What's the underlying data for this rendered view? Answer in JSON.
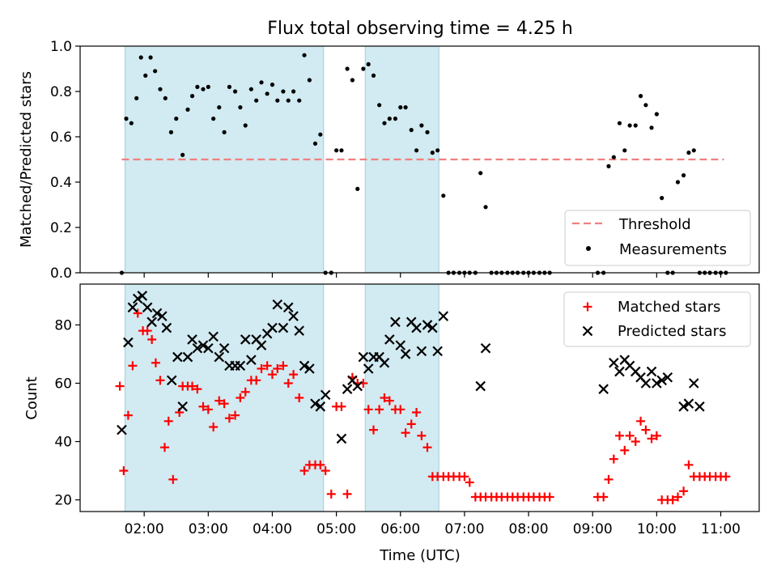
{
  "chart_data": [
    {
      "type": "scatter",
      "title": "Flux total observing time = 4.25 h",
      "ylabel": "Matched/Predicted stars",
      "xlabel": "",
      "x_unit": "hours UTC",
      "ylim": [
        0,
        1
      ],
      "yticks": [
        "0.0",
        "0.2",
        "0.4",
        "0.6",
        "0.8",
        "1.0"
      ],
      "shaded_intervals": [
        [
          1.7,
          4.8
        ],
        [
          5.45,
          6.6
        ]
      ],
      "shade_color": "#add8e6",
      "legend_position": "lower right",
      "threshold": {
        "name": "Threshold",
        "value": 0.5,
        "x_range": [
          1.65,
          11.05
        ],
        "color": "#f08080"
      },
      "series": [
        {
          "name": "Measurements",
          "color": "#000000",
          "x": [
            1.65,
            1.72,
            1.8,
            1.88,
            1.95,
            2.02,
            2.1,
            2.17,
            2.25,
            2.33,
            2.42,
            2.5,
            2.6,
            2.68,
            2.75,
            2.83,
            2.92,
            3.0,
            3.08,
            3.17,
            3.25,
            3.33,
            3.42,
            3.5,
            3.58,
            3.67,
            3.75,
            3.83,
            3.92,
            4.0,
            4.08,
            4.17,
            4.25,
            4.33,
            4.42,
            4.5,
            4.58,
            4.67,
            4.75,
            4.83,
            4.92,
            5.0,
            5.08,
            5.17,
            5.25,
            5.33,
            5.42,
            5.5,
            5.58,
            5.67,
            5.75,
            5.83,
            5.92,
            6.0,
            6.08,
            6.17,
            6.25,
            6.33,
            6.42,
            6.5,
            6.58,
            6.67,
            6.75,
            6.83,
            6.92,
            7.0,
            7.08,
            7.17,
            7.25,
            7.33,
            7.42,
            7.5,
            7.58,
            7.67,
            7.75,
            7.83,
            7.92,
            8.0,
            8.08,
            8.17,
            8.25,
            8.33,
            9.08,
            9.17,
            9.25,
            9.33,
            9.42,
            9.5,
            9.58,
            9.67,
            9.75,
            9.83,
            9.92,
            10.0,
            10.08,
            10.17,
            10.25,
            10.33,
            10.42,
            10.5,
            10.58,
            10.67,
            10.75,
            10.83,
            10.92,
            11.0,
            11.08
          ],
          "y": [
            0.0,
            0.68,
            0.66,
            0.77,
            0.95,
            0.87,
            0.95,
            0.89,
            0.81,
            0.77,
            0.62,
            0.68,
            0.52,
            0.72,
            0.78,
            0.82,
            0.81,
            0.82,
            0.68,
            0.73,
            0.62,
            0.82,
            0.8,
            0.73,
            0.65,
            0.81,
            0.76,
            0.84,
            0.79,
            0.83,
            0.76,
            0.8,
            0.76,
            0.8,
            0.76,
            0.96,
            0.85,
            0.57,
            0.61,
            0.0,
            0.0,
            0.54,
            0.54,
            0.9,
            0.85,
            0.37,
            0.9,
            0.92,
            0.87,
            0.74,
            0.66,
            0.68,
            0.68,
            0.73,
            0.73,
            0.63,
            0.54,
            0.65,
            0.62,
            0.53,
            0.54,
            0.34,
            0.0,
            0.0,
            0.0,
            0.0,
            0.0,
            0.0,
            0.44,
            0.29,
            0.0,
            0.0,
            0.0,
            0.0,
            0.0,
            0.0,
            0.0,
            0.0,
            0.0,
            0.0,
            0.0,
            0.0,
            0.0,
            0.0,
            0.47,
            0.51,
            0.66,
            0.54,
            0.65,
            0.65,
            0.78,
            0.74,
            0.64,
            0.7,
            0.33,
            0.0,
            0.0,
            0.4,
            0.43,
            0.53,
            0.54,
            0.0,
            0.0,
            0.0,
            0.0,
            0.0,
            0.0
          ]
        }
      ]
    },
    {
      "type": "scatter",
      "title": "",
      "ylabel": "Count",
      "xlabel": "Time (UTC)",
      "x_unit": "hours UTC",
      "xlim": [
        1.0,
        11.6
      ],
      "xticks": [
        "02:00",
        "03:00",
        "04:00",
        "05:00",
        "06:00",
        "07:00",
        "08:00",
        "09:00",
        "10:00",
        "11:00"
      ],
      "ylim": [
        16,
        94
      ],
      "yticks": [
        "20",
        "40",
        "60",
        "80"
      ],
      "shaded_intervals": [
        [
          1.7,
          4.8
        ],
        [
          5.45,
          6.6
        ]
      ],
      "shade_color": "#add8e6",
      "legend_position": "upper right",
      "series": [
        {
          "name": "Matched stars",
          "marker": "plus",
          "color": "#ff0000",
          "x": [
            1.62,
            1.68,
            1.75,
            1.82,
            1.9,
            1.98,
            2.05,
            2.12,
            2.18,
            2.25,
            2.32,
            2.38,
            2.45,
            2.55,
            2.6,
            2.68,
            2.75,
            2.83,
            2.92,
            3.0,
            3.08,
            3.17,
            3.25,
            3.33,
            3.42,
            3.5,
            3.58,
            3.67,
            3.75,
            3.83,
            3.92,
            4.0,
            4.08,
            4.17,
            4.25,
            4.33,
            4.42,
            4.5,
            4.58,
            4.67,
            4.75,
            4.83,
            4.92,
            5.0,
            5.08,
            5.17,
            5.25,
            5.33,
            5.42,
            5.5,
            5.58,
            5.67,
            5.75,
            5.83,
            5.92,
            6.0,
            6.08,
            6.17,
            6.25,
            6.33,
            6.42,
            6.5,
            6.58,
            6.67,
            6.75,
            6.83,
            6.92,
            7.0,
            7.08,
            7.17,
            7.25,
            7.33,
            7.42,
            7.5,
            7.58,
            7.67,
            7.75,
            7.83,
            7.92,
            8.0,
            8.08,
            8.17,
            8.25,
            8.33,
            9.08,
            9.17,
            9.25,
            9.33,
            9.42,
            9.5,
            9.58,
            9.67,
            9.75,
            9.83,
            9.92,
            10.0,
            10.08,
            10.17,
            10.25,
            10.33,
            10.42,
            10.5,
            10.58,
            10.67,
            10.75,
            10.83,
            10.92,
            11.0,
            11.08
          ],
          "y": [
            59,
            30,
            49,
            66,
            84,
            78,
            78,
            75,
            67,
            61,
            38,
            47,
            27,
            50,
            59,
            59,
            59,
            58,
            52,
            51,
            45,
            54,
            53,
            48,
            49,
            55,
            57,
            61,
            61,
            65,
            66,
            63,
            65,
            66,
            60,
            63,
            55,
            30,
            32,
            32,
            32,
            30,
            22,
            52,
            52,
            22,
            62,
            60,
            60,
            51,
            44,
            51,
            55,
            54,
            51,
            51,
            43,
            46,
            50,
            42,
            38,
            28,
            28,
            28,
            28,
            28,
            28,
            28,
            26,
            21,
            21,
            21,
            21,
            21,
            21,
            21,
            21,
            21,
            21,
            21,
            21,
            21,
            21,
            21,
            21,
            21,
            27,
            34,
            42,
            37,
            42,
            40,
            47,
            44,
            41,
            42,
            20,
            20,
            20,
            21,
            23,
            32,
            28,
            28,
            28,
            28,
            28,
            28,
            28
          ]
        },
        {
          "name": "Predicted stars",
          "marker": "x",
          "color": "#000000",
          "x": [
            1.65,
            1.75,
            1.82,
            1.9,
            1.97,
            2.05,
            2.12,
            2.2,
            2.28,
            2.35,
            2.43,
            2.52,
            2.6,
            2.68,
            2.75,
            2.83,
            2.92,
            3.0,
            3.08,
            3.17,
            3.25,
            3.33,
            3.42,
            3.5,
            3.58,
            3.67,
            3.75,
            3.83,
            3.92,
            4.0,
            4.08,
            4.17,
            4.25,
            4.33,
            4.42,
            4.5,
            4.58,
            4.67,
            4.75,
            4.83,
            5.08,
            5.17,
            5.25,
            5.33,
            5.42,
            5.5,
            5.58,
            5.67,
            5.75,
            5.83,
            5.92,
            6.0,
            6.08,
            6.17,
            6.25,
            6.33,
            6.42,
            6.5,
            6.58,
            6.67,
            7.25,
            7.33,
            9.17,
            9.33,
            9.42,
            9.5,
            9.58,
            9.67,
            9.75,
            9.83,
            9.92,
            10.0,
            10.08,
            10.17,
            10.42,
            10.5,
            10.58,
            10.67
          ],
          "y": [
            44,
            74,
            86,
            89,
            90,
            86,
            81,
            84,
            83,
            79,
            61,
            69,
            52,
            69,
            75,
            72,
            73,
            72,
            76,
            69,
            72,
            66,
            66,
            66,
            75,
            68,
            75,
            73,
            77,
            79,
            87,
            79,
            86,
            83,
            78,
            66,
            65,
            53,
            52,
            56,
            41,
            58,
            61,
            59,
            69,
            65,
            69,
            69,
            67,
            75,
            81,
            73,
            70,
            81,
            79,
            71,
            80,
            79,
            71,
            83,
            59,
            72,
            58,
            67,
            64,
            68,
            66,
            64,
            62,
            60,
            64,
            60,
            61,
            62,
            52,
            53,
            60,
            52
          ]
        }
      ]
    }
  ]
}
